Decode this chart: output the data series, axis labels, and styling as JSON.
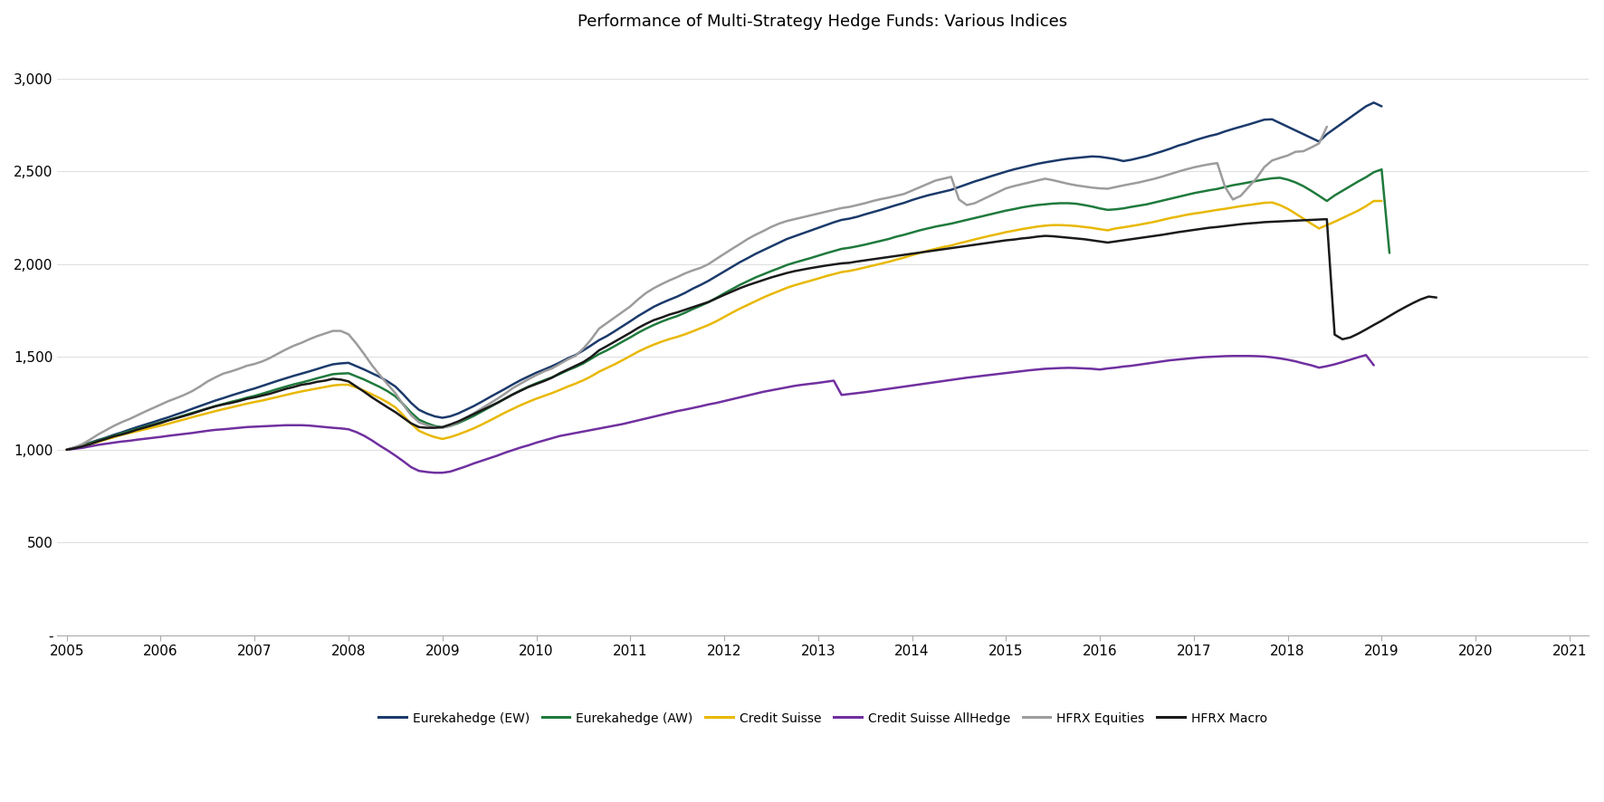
{
  "title": "Performance of Multi-Strategy Hedge Funds: Various Indices",
  "series_order": [
    "Eurekahedge (EW)",
    "Eurekahedge (AW)",
    "Credit Suisse",
    "Credit Suisse AllHedge",
    "HFRX Equities",
    "HFRX Macro"
  ],
  "series": {
    "Eurekahedge (EW)": {
      "color": "#1b3a6b",
      "linewidth": 1.8,
      "values": [
        1000,
        1012,
        1025,
        1038,
        1052,
        1065,
        1080,
        1093,
        1108,
        1122,
        1135,
        1148,
        1162,
        1175,
        1190,
        1204,
        1220,
        1235,
        1250,
        1265,
        1278,
        1292,
        1305,
        1318,
        1330,
        1344,
        1358,
        1372,
        1385,
        1398,
        1410,
        1422,
        1435,
        1448,
        1460,
        1465,
        1468,
        1450,
        1432,
        1412,
        1392,
        1368,
        1340,
        1298,
        1252,
        1215,
        1195,
        1180,
        1172,
        1180,
        1195,
        1215,
        1235,
        1258,
        1282,
        1305,
        1328,
        1352,
        1375,
        1395,
        1415,
        1432,
        1450,
        1470,
        1492,
        1510,
        1535,
        1562,
        1590,
        1612,
        1638,
        1665,
        1692,
        1720,
        1745,
        1770,
        1790,
        1808,
        1825,
        1845,
        1868,
        1888,
        1910,
        1935,
        1960,
        1985,
        2010,
        2032,
        2055,
        2075,
        2095,
        2115,
        2135,
        2150,
        2165,
        2180,
        2195,
        2210,
        2225,
        2238,
        2245,
        2255,
        2268,
        2280,
        2292,
        2305,
        2318,
        2330,
        2345,
        2358,
        2370,
        2380,
        2390,
        2400,
        2415,
        2430,
        2445,
        2458,
        2472,
        2485,
        2498,
        2510,
        2520,
        2530,
        2540,
        2548,
        2555,
        2562,
        2568,
        2572,
        2576,
        2580,
        2578,
        2572,
        2565,
        2555,
        2562,
        2572,
        2582,
        2595,
        2608,
        2622,
        2638,
        2650,
        2665,
        2678,
        2690,
        2700,
        2715,
        2728,
        2740,
        2752,
        2765,
        2778,
        2780,
        2760,
        2740,
        2720,
        2700,
        2680,
        2660,
        2700,
        2730,
        2760,
        2790,
        2820,
        2850,
        2870,
        2850
      ]
    },
    "Eurekahedge (AW)": {
      "color": "#1f7a3c",
      "linewidth": 1.8,
      "values": [
        1000,
        1010,
        1022,
        1035,
        1048,
        1062,
        1075,
        1088,
        1100,
        1112,
        1124,
        1136,
        1148,
        1160,
        1172,
        1185,
        1198,
        1210,
        1222,
        1235,
        1246,
        1258,
        1268,
        1280,
        1290,
        1302,
        1315,
        1328,
        1340,
        1352,
        1362,
        1373,
        1385,
        1396,
        1407,
        1410,
        1412,
        1395,
        1378,
        1358,
        1338,
        1315,
        1287,
        1245,
        1200,
        1162,
        1143,
        1128,
        1120,
        1128,
        1143,
        1162,
        1182,
        1205,
        1228,
        1252,
        1275,
        1298,
        1320,
        1340,
        1358,
        1374,
        1390,
        1408,
        1428,
        1445,
        1465,
        1490,
        1515,
        1535,
        1558,
        1582,
        1605,
        1630,
        1652,
        1672,
        1690,
        1706,
        1720,
        1738,
        1758,
        1776,
        1795,
        1818,
        1842,
        1865,
        1888,
        1908,
        1928,
        1945,
        1962,
        1978,
        1995,
        2008,
        2020,
        2032,
        2045,
        2058,
        2070,
        2082,
        2088,
        2096,
        2105,
        2115,
        2125,
        2135,
        2148,
        2158,
        2170,
        2182,
        2192,
        2202,
        2210,
        2218,
        2228,
        2238,
        2248,
        2258,
        2268,
        2278,
        2288,
        2296,
        2305,
        2312,
        2318,
        2322,
        2326,
        2328,
        2328,
        2325,
        2318,
        2310,
        2300,
        2292,
        2295,
        2300,
        2308,
        2315,
        2322,
        2332,
        2342,
        2352,
        2362,
        2372,
        2382,
        2390,
        2398,
        2405,
        2415,
        2425,
        2432,
        2440,
        2448,
        2456,
        2462,
        2465,
        2455,
        2440,
        2420,
        2395,
        2368,
        2340,
        2370,
        2395,
        2420,
        2445,
        2468,
        2495,
        2510,
        2060
      ]
    },
    "Credit Suisse": {
      "color": "#e8b800",
      "linewidth": 1.8,
      "values": [
        1000,
        1008,
        1018,
        1030,
        1042,
        1055,
        1067,
        1080,
        1090,
        1100,
        1110,
        1120,
        1130,
        1140,
        1152,
        1163,
        1175,
        1186,
        1197,
        1208,
        1218,
        1228,
        1238,
        1248,
        1257,
        1265,
        1275,
        1285,
        1295,
        1305,
        1314,
        1322,
        1330,
        1338,
        1346,
        1350,
        1350,
        1335,
        1318,
        1298,
        1278,
        1255,
        1228,
        1185,
        1140,
        1102,
        1083,
        1068,
        1058,
        1068,
        1082,
        1098,
        1115,
        1135,
        1156,
        1178,
        1200,
        1220,
        1240,
        1258,
        1275,
        1290,
        1305,
        1322,
        1340,
        1356,
        1374,
        1395,
        1420,
        1440,
        1460,
        1482,
        1505,
        1528,
        1548,
        1566,
        1582,
        1596,
        1608,
        1622,
        1638,
        1655,
        1672,
        1692,
        1715,
        1738,
        1760,
        1780,
        1800,
        1820,
        1838,
        1855,
        1872,
        1886,
        1898,
        1910,
        1922,
        1935,
        1946,
        1957,
        1963,
        1972,
        1982,
        1992,
        2002,
        2012,
        2024,
        2035,
        2048,
        2060,
        2072,
        2082,
        2092,
        2100,
        2112,
        2122,
        2133,
        2143,
        2153,
        2162,
        2172,
        2180,
        2188,
        2195,
        2202,
        2207,
        2210,
        2210,
        2208,
        2205,
        2200,
        2195,
        2188,
        2182,
        2192,
        2198,
        2205,
        2212,
        2220,
        2228,
        2238,
        2248,
        2256,
        2265,
        2272,
        2278,
        2285,
        2292,
        2298,
        2305,
        2312,
        2318,
        2324,
        2330,
        2332,
        2318,
        2298,
        2272,
        2245,
        2218,
        2192,
        2210,
        2228,
        2248,
        2268,
        2288,
        2312,
        2340,
        2340
      ]
    },
    "Credit Suisse AllHedge": {
      "color": "#7030a0",
      "linewidth": 1.8,
      "values": [
        1000,
        1005,
        1010,
        1018,
        1026,
        1032,
        1038,
        1044,
        1048,
        1054,
        1059,
        1064,
        1069,
        1075,
        1080,
        1085,
        1090,
        1096,
        1102,
        1107,
        1110,
        1114,
        1118,
        1122,
        1124,
        1126,
        1128,
        1130,
        1132,
        1132,
        1132,
        1130,
        1126,
        1122,
        1118,
        1115,
        1110,
        1095,
        1075,
        1050,
        1022,
        996,
        968,
        938,
        906,
        886,
        880,
        876,
        876,
        882,
        896,
        910,
        926,
        940,
        954,
        968,
        984,
        998,
        1012,
        1024,
        1038,
        1050,
        1062,
        1074,
        1082,
        1090,
        1098,
        1106,
        1114,
        1122,
        1130,
        1138,
        1148,
        1158,
        1168,
        1178,
        1188,
        1198,
        1208,
        1216,
        1225,
        1234,
        1244,
        1252,
        1262,
        1272,
        1282,
        1292,
        1302,
        1312,
        1320,
        1328,
        1336,
        1344,
        1350,
        1355,
        1360,
        1366,
        1372,
        1295,
        1300,
        1305,
        1310,
        1316,
        1322,
        1328,
        1334,
        1340,
        1346,
        1352,
        1358,
        1364,
        1370,
        1376,
        1382,
        1388,
        1393,
        1398,
        1403,
        1408,
        1413,
        1418,
        1423,
        1428,
        1432,
        1436,
        1438,
        1440,
        1441,
        1440,
        1438,
        1436,
        1432,
        1438,
        1442,
        1448,
        1452,
        1458,
        1464,
        1470,
        1476,
        1482,
        1486,
        1490,
        1494,
        1498,
        1500,
        1502,
        1504,
        1505,
        1505,
        1505,
        1504,
        1502,
        1498,
        1492,
        1485,
        1476,
        1465,
        1455,
        1442,
        1450,
        1460,
        1472,
        1485,
        1498,
        1510,
        1455
      ]
    },
    "HFRX Equities": {
      "color": "#9c9c9c",
      "linewidth": 1.8,
      "values": [
        1000,
        1012,
        1030,
        1055,
        1082,
        1105,
        1128,
        1148,
        1165,
        1185,
        1205,
        1224,
        1243,
        1262,
        1278,
        1295,
        1315,
        1340,
        1368,
        1390,
        1410,
        1422,
        1436,
        1452,
        1462,
        1476,
        1495,
        1518,
        1540,
        1560,
        1576,
        1595,
        1612,
        1626,
        1640,
        1640,
        1622,
        1572,
        1515,
        1455,
        1402,
        1352,
        1304,
        1242,
        1186,
        1148,
        1132,
        1122,
        1118,
        1128,
        1148,
        1172,
        1196,
        1222,
        1248,
        1274,
        1302,
        1332,
        1356,
        1380,
        1402,
        1422,
        1438,
        1462,
        1486,
        1506,
        1545,
        1594,
        1652,
        1682,
        1712,
        1742,
        1772,
        1810,
        1844,
        1870,
        1892,
        1912,
        1930,
        1950,
        1966,
        1980,
        2000,
        2028,
        2055,
        2082,
        2108,
        2135,
        2158,
        2178,
        2200,
        2218,
        2232,
        2242,
        2252,
        2262,
        2272,
        2282,
        2292,
        2302,
        2308,
        2318,
        2328,
        2340,
        2350,
        2358,
        2368,
        2378,
        2396,
        2414,
        2432,
        2450,
        2460,
        2470,
        2348,
        2318,
        2328,
        2348,
        2368,
        2388,
        2408,
        2420,
        2430,
        2440,
        2450,
        2460,
        2452,
        2442,
        2432,
        2424,
        2418,
        2412,
        2408,
        2406,
        2415,
        2424,
        2432,
        2440,
        2450,
        2460,
        2472,
        2485,
        2498,
        2510,
        2521,
        2530,
        2538,
        2544,
        2415,
        2348,
        2368,
        2415,
        2462,
        2522,
        2558,
        2572,
        2585,
        2605,
        2608,
        2628,
        2650,
        2740
      ]
    },
    "HFRX Macro": {
      "color": "#1a1a1a",
      "linewidth": 1.8,
      "values": [
        1000,
        1008,
        1018,
        1030,
        1045,
        1058,
        1072,
        1082,
        1094,
        1108,
        1120,
        1132,
        1144,
        1158,
        1170,
        1182,
        1194,
        1208,
        1222,
        1234,
        1244,
        1252,
        1262,
        1274,
        1282,
        1292,
        1302,
        1315,
        1328,
        1338,
        1350,
        1356,
        1366,
        1372,
        1382,
        1378,
        1368,
        1340,
        1312,
        1282,
        1255,
        1228,
        1202,
        1172,
        1142,
        1122,
        1118,
        1118,
        1122,
        1136,
        1152,
        1172,
        1192,
        1212,
        1232,
        1252,
        1275,
        1298,
        1318,
        1338,
        1354,
        1370,
        1388,
        1412,
        1432,
        1452,
        1472,
        1500,
        1535,
        1558,
        1582,
        1606,
        1630,
        1656,
        1678,
        1698,
        1712,
        1728,
        1740,
        1754,
        1768,
        1782,
        1796,
        1815,
        1834,
        1852,
        1870,
        1886,
        1900,
        1914,
        1928,
        1940,
        1952,
        1962,
        1970,
        1978,
        1985,
        1992,
        1998,
        2004,
        2007,
        2014,
        2020,
        2026,
        2032,
        2038,
        2044,
        2050,
        2056,
        2062,
        2068,
        2074,
        2080,
        2086,
        2092,
        2098,
        2104,
        2110,
        2116,
        2122,
        2128,
        2132,
        2138,
        2142,
        2148,
        2152,
        2150,
        2146,
        2142,
        2138,
        2134,
        2128,
        2122,
        2116,
        2122,
        2128,
        2134,
        2140,
        2146,
        2152,
        2158,
        2165,
        2172,
        2178,
        2184,
        2190,
        2196,
        2200,
        2205,
        2210,
        2215,
        2219,
        2222,
        2226,
        2228,
        2230,
        2232,
        2234,
        2236,
        2238,
        2240,
        2242,
        1620,
        1595,
        1605,
        1625,
        1648,
        1672,
        1695,
        1720,
        1745,
        1768,
        1790,
        1810,
        1825,
        1820
      ]
    }
  },
  "x_tick_years": [
    2005,
    2006,
    2007,
    2008,
    2009,
    2010,
    2011,
    2012,
    2013,
    2014,
    2015,
    2016,
    2017,
    2018,
    2019,
    2020,
    2021
  ],
  "xlim": [
    2004.9,
    2021.2
  ],
  "yticks": [
    0,
    500,
    1000,
    1500,
    2000,
    2500,
    3000
  ],
  "ytick_labels": [
    "-",
    "500",
    "1,000",
    "1,500",
    "2,000",
    "2,500",
    "3,000"
  ],
  "ylim": [
    0,
    3200
  ],
  "title_fontsize": 13,
  "legend_fontsize": 10,
  "tick_fontsize": 11,
  "background_color": "#ffffff"
}
